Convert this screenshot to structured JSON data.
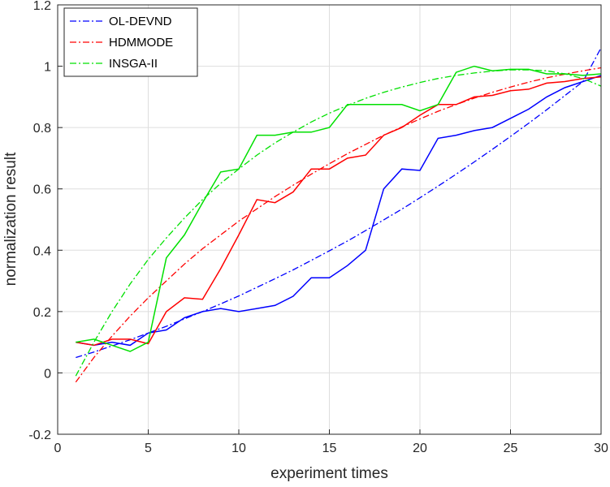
{
  "chart_data": {
    "type": "line",
    "title": "",
    "xlabel": "experiment times",
    "ylabel": "normalization result",
    "xlim": [
      0,
      30
    ],
    "ylim": [
      -0.2,
      1.2
    ],
    "xticks": [
      0,
      5,
      10,
      15,
      20,
      25,
      30
    ],
    "yticks": [
      -0.2,
      0,
      0.2,
      0.4,
      0.6,
      0.8,
      1,
      1.2
    ],
    "xtick_labels": [
      "0",
      "5",
      "10",
      "15",
      "20",
      "25",
      "30"
    ],
    "ytick_labels": [
      "-0.2",
      "0",
      "0.2",
      "0.4",
      "0.6",
      "0.8",
      "1",
      "1.2"
    ],
    "grid": true,
    "legend_position": "top-left",
    "x": [
      1,
      2,
      3,
      4,
      5,
      6,
      7,
      8,
      9,
      10,
      11,
      12,
      13,
      14,
      15,
      16,
      17,
      18,
      19,
      20,
      21,
      22,
      23,
      24,
      25,
      26,
      27,
      28,
      29,
      30
    ],
    "series": [
      {
        "name": "OL-DEVND",
        "color": "#0000ff",
        "values": [
          0.1,
          0.09,
          0.1,
          0.09,
          0.13,
          0.14,
          0.18,
          0.2,
          0.21,
          0.2,
          0.21,
          0.22,
          0.25,
          0.31,
          0.31,
          0.35,
          0.4,
          0.6,
          0.665,
          0.66,
          0.765,
          0.775,
          0.79,
          0.8,
          0.83,
          0.86,
          0.9,
          0.93,
          0.95,
          0.97
        ],
        "fit": [
          0.05,
          0.068,
          0.088,
          0.108,
          0.13,
          0.152,
          0.176,
          0.2,
          0.225,
          0.251,
          0.279,
          0.307,
          0.336,
          0.367,
          0.398,
          0.43,
          0.464,
          0.499,
          0.534,
          0.571,
          0.609,
          0.648,
          0.688,
          0.729,
          0.771,
          0.814,
          0.858,
          0.904,
          0.95,
          1.06
        ]
      },
      {
        "name": "HDMMODE",
        "color": "#ff0000",
        "values": [
          0.1,
          0.09,
          0.11,
          0.11,
          0.095,
          0.2,
          0.245,
          0.24,
          0.34,
          0.45,
          0.565,
          0.555,
          0.59,
          0.665,
          0.665,
          0.7,
          0.71,
          0.775,
          0.8,
          0.84,
          0.875,
          0.875,
          0.9,
          0.905,
          0.92,
          0.925,
          0.945,
          0.95,
          0.96,
          0.965
        ],
        "fit": [
          -0.03,
          0.05,
          0.12,
          0.185,
          0.245,
          0.3,
          0.355,
          0.405,
          0.45,
          0.495,
          0.535,
          0.575,
          0.612,
          0.648,
          0.682,
          0.715,
          0.745,
          0.775,
          0.802,
          0.828,
          0.853,
          0.875,
          0.896,
          0.915,
          0.932,
          0.948,
          0.962,
          0.974,
          0.985,
          0.995
        ]
      },
      {
        "name": "INSGA-II",
        "color": "#00e000",
        "values": [
          0.1,
          0.11,
          0.09,
          0.07,
          0.1,
          0.375,
          0.45,
          0.555,
          0.655,
          0.665,
          0.775,
          0.775,
          0.785,
          0.785,
          0.8,
          0.875,
          0.875,
          0.875,
          0.875,
          0.855,
          0.875,
          0.98,
          1.0,
          0.985,
          0.99,
          0.99,
          0.975,
          0.975,
          0.97,
          0.975
        ],
        "fit": [
          -0.01,
          0.1,
          0.2,
          0.29,
          0.37,
          0.44,
          0.505,
          0.565,
          0.618,
          0.665,
          0.71,
          0.75,
          0.785,
          0.818,
          0.847,
          0.872,
          0.895,
          0.915,
          0.932,
          0.947,
          0.96,
          0.97,
          0.978,
          0.984,
          0.988,
          0.988,
          0.985,
          0.975,
          0.96,
          0.935
        ]
      }
    ]
  }
}
